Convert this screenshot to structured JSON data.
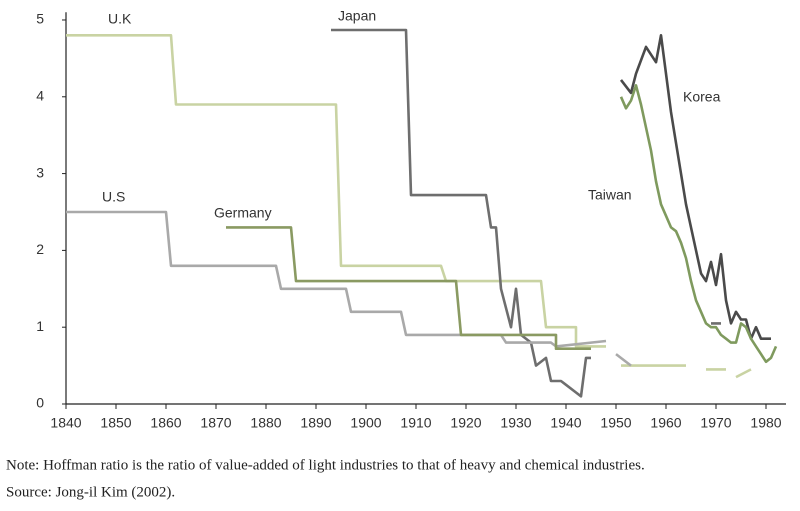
{
  "chart_data": {
    "type": "line",
    "xlim": [
      1840,
      1984
    ],
    "ylim": [
      0,
      5.1
    ],
    "xticks": [
      1840,
      1850,
      1860,
      1870,
      1880,
      1890,
      1900,
      1910,
      1920,
      1930,
      1940,
      1950,
      1960,
      1970,
      1980
    ],
    "yticks": [
      0,
      1,
      2,
      3,
      4,
      5
    ],
    "series": [
      {
        "name": "U.K",
        "color": "#c9d3a3",
        "x": [
          1840,
          1861,
          1862,
          1894,
          1895,
          1915,
          1916,
          1935,
          1936,
          1942,
          1942,
          1948,
          null,
          1951,
          1964,
          null,
          1968,
          1972,
          null,
          1974,
          1977
        ],
        "values": [
          4.8,
          4.8,
          3.9,
          3.9,
          1.8,
          1.8,
          1.6,
          1.6,
          1.0,
          1.0,
          0.75,
          0.75,
          null,
          0.5,
          0.5,
          null,
          0.45,
          0.45,
          null,
          0.35,
          0.45
        ]
      },
      {
        "name": "Japan",
        "color": "#6e6e6e",
        "x": [
          1893,
          1908,
          1909,
          1924,
          1925,
          1926,
          1927,
          1929,
          1930,
          1931,
          1933,
          1934,
          1936,
          1937,
          1939,
          1940,
          1942,
          1943,
          1944,
          1945,
          null,
          1969,
          1971
        ],
        "values": [
          4.87,
          4.87,
          2.72,
          2.72,
          2.3,
          2.3,
          1.5,
          1.0,
          1.5,
          0.9,
          0.8,
          0.5,
          0.6,
          0.3,
          0.3,
          0.25,
          0.15,
          0.1,
          0.6,
          0.6,
          null,
          1.05,
          1.05
        ]
      },
      {
        "name": "U.S",
        "color": "#a9a9a9",
        "x": [
          1840,
          1860,
          1861,
          1882,
          1883,
          1896,
          1897,
          1907,
          1908,
          1927,
          1928,
          1937,
          1938,
          1948,
          null,
          1950,
          1953
        ],
        "values": [
          2.5,
          2.5,
          1.8,
          1.8,
          1.5,
          1.5,
          1.2,
          1.2,
          0.9,
          0.9,
          0.8,
          0.8,
          0.75,
          0.82,
          null,
          0.65,
          0.5
        ]
      },
      {
        "name": "Germany",
        "color": "#8a9a62",
        "x": [
          1872,
          1885,
          1886,
          1918,
          1919,
          1938,
          1938,
          1945
        ],
        "values": [
          2.3,
          2.3,
          1.6,
          1.6,
          0.9,
          0.9,
          0.72,
          0.72
        ]
      },
      {
        "name": "Korea",
        "color": "#4a4a4a",
        "x": [
          1951,
          1953,
          1954,
          1956,
          1958,
          1959,
          1960,
          1961,
          1962,
          1963,
          1964,
          1965,
          1966,
          1967,
          1968,
          1969,
          1970,
          1971,
          1972,
          1973,
          1974,
          1975,
          1976,
          1977,
          1978,
          1979,
          1980,
          1981
        ],
        "values": [
          4.22,
          4.05,
          4.3,
          4.65,
          4.45,
          4.8,
          4.3,
          3.8,
          3.4,
          3.0,
          2.6,
          2.3,
          2.0,
          1.7,
          1.6,
          1.85,
          1.55,
          1.95,
          1.35,
          1.05,
          1.2,
          1.1,
          1.1,
          0.85,
          1.0,
          0.85,
          0.85,
          0.85
        ]
      },
      {
        "name": "Taiwan",
        "color": "#7f9a5e",
        "x": [
          1951,
          1952,
          1953,
          1954,
          1955,
          1956,
          1957,
          1958,
          1959,
          1960,
          1961,
          1962,
          1963,
          1964,
          1965,
          1966,
          1967,
          1968,
          1969,
          1970,
          1971,
          1972,
          1973,
          1974,
          1975,
          1976,
          1977,
          1978,
          1979,
          1980,
          1981,
          1982
        ],
        "values": [
          4.0,
          3.85,
          3.95,
          4.15,
          3.9,
          3.6,
          3.3,
          2.9,
          2.6,
          2.45,
          2.3,
          2.25,
          2.1,
          1.9,
          1.6,
          1.35,
          1.2,
          1.05,
          1.0,
          1.0,
          0.9,
          0.85,
          0.8,
          0.8,
          1.05,
          1.0,
          0.85,
          0.75,
          0.65,
          0.55,
          0.6,
          0.75
        ]
      }
    ],
    "note": "Note: Hoffman ratio is the ratio of value-added of light industries to that of heavy and chemical industries.",
    "source": "Source: Jong-il Kim (2002)."
  }
}
